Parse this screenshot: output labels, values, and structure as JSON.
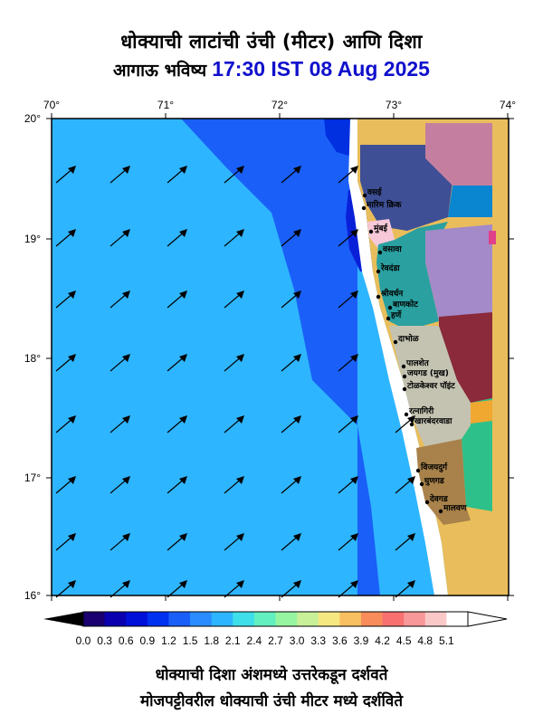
{
  "title": {
    "line1": "धोक्याची लाटांची उंची (मीटर) आणि दिशा",
    "line2_prefix": "आगाऊ भविष्य",
    "timestamp": "17:30 IST 08 Aug 2025"
  },
  "map": {
    "lon_labels": [
      "70°",
      "71°",
      "72°",
      "73°",
      "74°"
    ],
    "lat_labels": [
      "20°",
      "19°",
      "18°",
      "17°",
      "16°"
    ],
    "place_names": [
      "वसई",
      "मारिम क्रिक",
      "मुंबई",
      "वसावा",
      "रेवदंडा",
      "श्रीवर्धन",
      "बाणकोट",
      "हर्णे",
      "दाभोळ",
      "पालशेत",
      "जयगड (मुख)",
      "टोळकेश्वर पॉइंट",
      "रत्नागिरी",
      "खारबंदरवाडा",
      "विजयदुर्ग",
      "घुणगड",
      "देवगड",
      "मालवण"
    ],
    "wave_direction_note": "arrows point north-east across the basin"
  },
  "colorbar": {
    "ticks": [
      "0.0",
      "0.3",
      "0.6",
      "0.9",
      "1.2",
      "1.5",
      "1.8",
      "2.1",
      "2.4",
      "2.7",
      "3.0",
      "3.3",
      "3.6",
      "3.9",
      "4.2",
      "4.5",
      "4.8",
      "5.1"
    ],
    "colors": [
      "#1a0070",
      "#0a00b0",
      "#0010d8",
      "#0030f0",
      "#1a5ff8",
      "#2a8cff",
      "#2eb5ff",
      "#3edfe8",
      "#62f0c0",
      "#96f5a0",
      "#c8f098",
      "#f6e880",
      "#f8c060",
      "#f88c5a",
      "#f87070",
      "#f89898",
      "#fbc8c8",
      "#ffffff"
    ]
  },
  "footer": {
    "line1": "धोक्याची दिशा अंशमध्ये उत्तरेकडून दर्शवते",
    "line2": "मोजपट्टीवरील धोक्याची उंची मीटर मध्ये दर्शविते"
  }
}
